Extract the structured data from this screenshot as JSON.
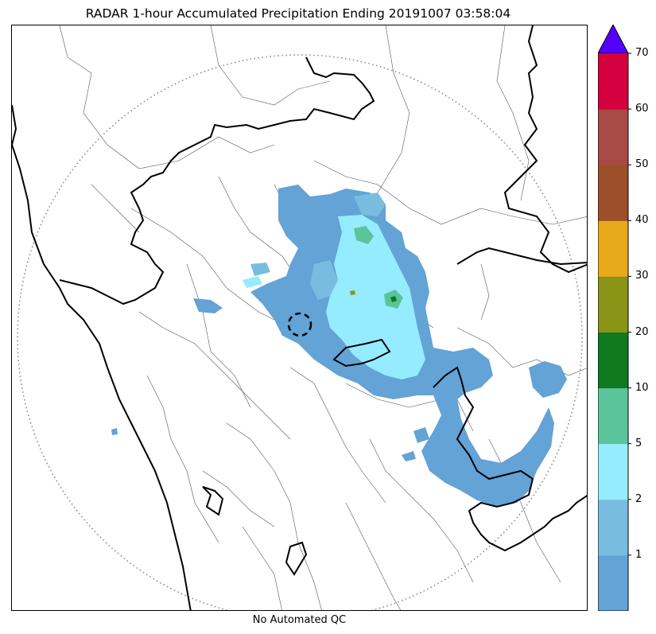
{
  "title": "RADAR 1-hour Accumulated Precipitation Ending 20191007 03:58:04",
  "caption": "No Automated QC",
  "colorbar": {
    "ticks": [
      "1",
      "2",
      "5",
      "10",
      "20",
      "30",
      "40",
      "50",
      "60",
      "70"
    ],
    "colors": [
      "#63a3d6",
      "#78bde0",
      "#96ecff",
      "#5cc499",
      "#0f7a1f",
      "#8a9417",
      "#e8a91a",
      "#9c4f29",
      "#a84a45",
      "#d4003d"
    ],
    "extend_color": "#5500ff"
  },
  "map": {
    "features": [
      "state-borders",
      "district-borders",
      "coastline",
      "radar-range-ring",
      "radar-site-marker",
      "precipitation-field"
    ]
  }
}
